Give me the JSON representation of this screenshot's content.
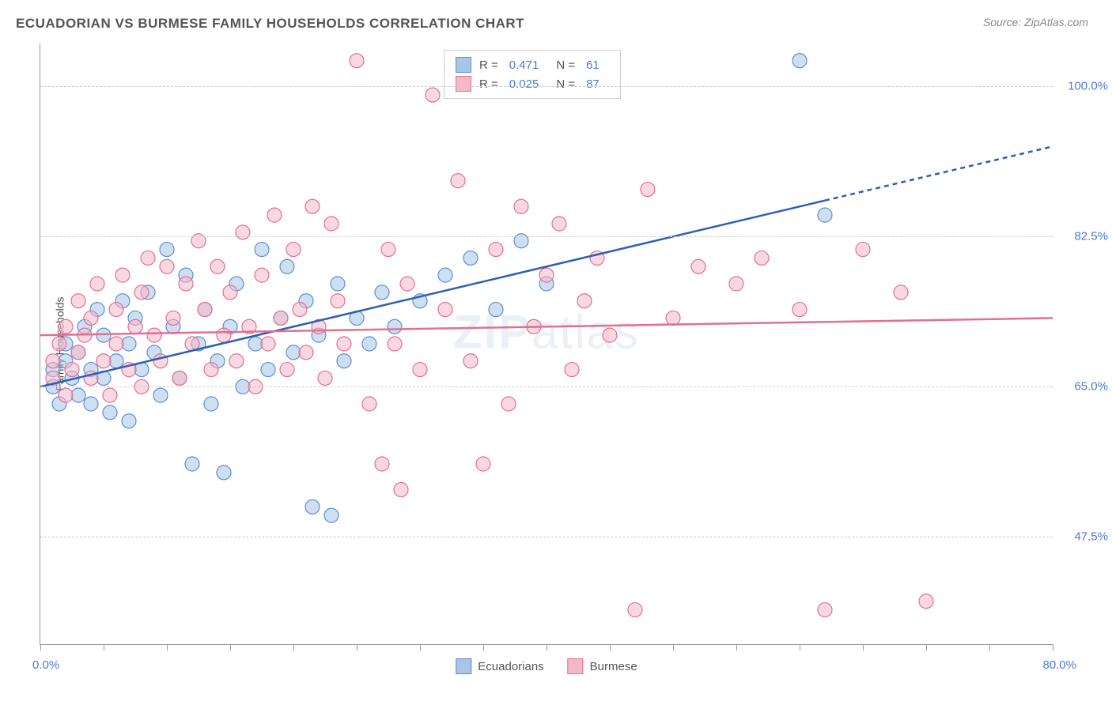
{
  "title": "ECUADORIAN VS BURMESE FAMILY HOUSEHOLDS CORRELATION CHART",
  "source": "Source: ZipAtlas.com",
  "watermark_bold": "ZIP",
  "watermark_rest": "atlas",
  "y_axis_title": "Family Households",
  "chart": {
    "type": "scatter",
    "x_range": [
      0,
      80
    ],
    "y_range": [
      35,
      105
    ],
    "x_label_min": "0.0%",
    "x_label_max": "80.0%",
    "x_ticks": [
      0,
      5,
      10,
      15,
      20,
      25,
      30,
      35,
      40,
      45,
      50,
      55,
      60,
      65,
      70,
      75,
      80
    ],
    "y_gridlines": [
      47.5,
      65.0,
      82.5,
      100.0
    ],
    "y_labels": [
      "47.5%",
      "65.0%",
      "82.5%",
      "100.0%"
    ],
    "grid_color": "#cccccc",
    "axis_color": "#999999",
    "background": "#ffffff",
    "marker_radius": 9,
    "marker_opacity": 0.55,
    "line_width": 2.5,
    "series": [
      {
        "name": "Ecuadorians",
        "fill": "#a8c5e8",
        "stroke": "#5b8fd6",
        "line_color": "#2c5fb3",
        "R": "0.471",
        "N": "61",
        "trend": {
          "x1": 0,
          "y1": 65,
          "x2": 80,
          "y2": 93,
          "solid_until_x": 62
        },
        "points": [
          [
            1,
            65
          ],
          [
            1,
            67
          ],
          [
            1.5,
            63
          ],
          [
            2,
            68
          ],
          [
            2,
            70
          ],
          [
            2.5,
            66
          ],
          [
            3,
            64
          ],
          [
            3,
            69
          ],
          [
            3.5,
            72
          ],
          [
            4,
            67
          ],
          [
            4,
            63
          ],
          [
            4.5,
            74
          ],
          [
            5,
            66
          ],
          [
            5,
            71
          ],
          [
            5.5,
            62
          ],
          [
            6,
            68
          ],
          [
            6.5,
            75
          ],
          [
            7,
            70
          ],
          [
            7,
            61
          ],
          [
            7.5,
            73
          ],
          [
            8,
            67
          ],
          [
            8.5,
            76
          ],
          [
            9,
            69
          ],
          [
            9.5,
            64
          ],
          [
            10,
            81
          ],
          [
            10.5,
            72
          ],
          [
            11,
            66
          ],
          [
            11.5,
            78
          ],
          [
            12,
            56
          ],
          [
            12.5,
            70
          ],
          [
            13,
            74
          ],
          [
            13.5,
            63
          ],
          [
            14,
            68
          ],
          [
            14.5,
            55
          ],
          [
            15,
            72
          ],
          [
            15.5,
            77
          ],
          [
            16,
            65
          ],
          [
            17,
            70
          ],
          [
            17.5,
            81
          ],
          [
            18,
            67
          ],
          [
            19,
            73
          ],
          [
            19.5,
            79
          ],
          [
            20,
            69
          ],
          [
            21,
            75
          ],
          [
            21.5,
            51
          ],
          [
            22,
            71
          ],
          [
            23,
            50
          ],
          [
            23.5,
            77
          ],
          [
            24,
            68
          ],
          [
            25,
            73
          ],
          [
            26,
            70
          ],
          [
            27,
            76
          ],
          [
            28,
            72
          ],
          [
            30,
            75
          ],
          [
            32,
            78
          ],
          [
            34,
            80
          ],
          [
            36,
            74
          ],
          [
            38,
            82
          ],
          [
            40,
            77
          ],
          [
            60,
            103
          ],
          [
            62,
            85
          ]
        ]
      },
      {
        "name": "Burmese",
        "fill": "#f5b8c8",
        "stroke": "#e36f8f",
        "line_color": "#e36f8f",
        "R": "0.025",
        "N": "87",
        "trend": {
          "x1": 0,
          "y1": 71,
          "x2": 80,
          "y2": 73,
          "solid_until_x": 80
        },
        "points": [
          [
            1,
            66
          ],
          [
            1,
            68
          ],
          [
            1.5,
            70
          ],
          [
            2,
            64
          ],
          [
            2,
            72
          ],
          [
            2.5,
            67
          ],
          [
            3,
            69
          ],
          [
            3,
            75
          ],
          [
            3.5,
            71
          ],
          [
            4,
            66
          ],
          [
            4,
            73
          ],
          [
            4.5,
            77
          ],
          [
            5,
            68
          ],
          [
            5.5,
            64
          ],
          [
            6,
            74
          ],
          [
            6,
            70
          ],
          [
            6.5,
            78
          ],
          [
            7,
            67
          ],
          [
            7.5,
            72
          ],
          [
            8,
            76
          ],
          [
            8,
            65
          ],
          [
            8.5,
            80
          ],
          [
            9,
            71
          ],
          [
            9.5,
            68
          ],
          [
            10,
            79
          ],
          [
            10.5,
            73
          ],
          [
            11,
            66
          ],
          [
            11.5,
            77
          ],
          [
            12,
            70
          ],
          [
            12.5,
            82
          ],
          [
            13,
            74
          ],
          [
            13.5,
            67
          ],
          [
            14,
            79
          ],
          [
            14.5,
            71
          ],
          [
            15,
            76
          ],
          [
            15.5,
            68
          ],
          [
            16,
            83
          ],
          [
            16.5,
            72
          ],
          [
            17,
            65
          ],
          [
            17.5,
            78
          ],
          [
            18,
            70
          ],
          [
            18.5,
            85
          ],
          [
            19,
            73
          ],
          [
            19.5,
            67
          ],
          [
            20,
            81
          ],
          [
            20.5,
            74
          ],
          [
            21,
            69
          ],
          [
            21.5,
            86
          ],
          [
            22,
            72
          ],
          [
            22.5,
            66
          ],
          [
            23,
            84
          ],
          [
            23.5,
            75
          ],
          [
            24,
            70
          ],
          [
            25,
            103
          ],
          [
            26,
            63
          ],
          [
            27,
            56
          ],
          [
            27.5,
            81
          ],
          [
            28,
            70
          ],
          [
            28.5,
            53
          ],
          [
            29,
            77
          ],
          [
            30,
            67
          ],
          [
            31,
            99
          ],
          [
            32,
            74
          ],
          [
            33,
            89
          ],
          [
            34,
            68
          ],
          [
            35,
            56
          ],
          [
            36,
            81
          ],
          [
            37,
            63
          ],
          [
            38,
            86
          ],
          [
            39,
            72
          ],
          [
            40,
            78
          ],
          [
            41,
            84
          ],
          [
            42,
            67
          ],
          [
            43,
            75
          ],
          [
            44,
            80
          ],
          [
            45,
            71
          ],
          [
            47,
            39
          ],
          [
            48,
            88
          ],
          [
            50,
            73
          ],
          [
            52,
            79
          ],
          [
            55,
            77
          ],
          [
            57,
            80
          ],
          [
            60,
            74
          ],
          [
            62,
            39
          ],
          [
            65,
            81
          ],
          [
            68,
            76
          ],
          [
            70,
            40
          ]
        ]
      }
    ]
  },
  "legend_box": {
    "r_label": "R = ",
    "n_label": "N = "
  },
  "bottom_legend": [
    "Ecuadorians",
    "Burmese"
  ]
}
